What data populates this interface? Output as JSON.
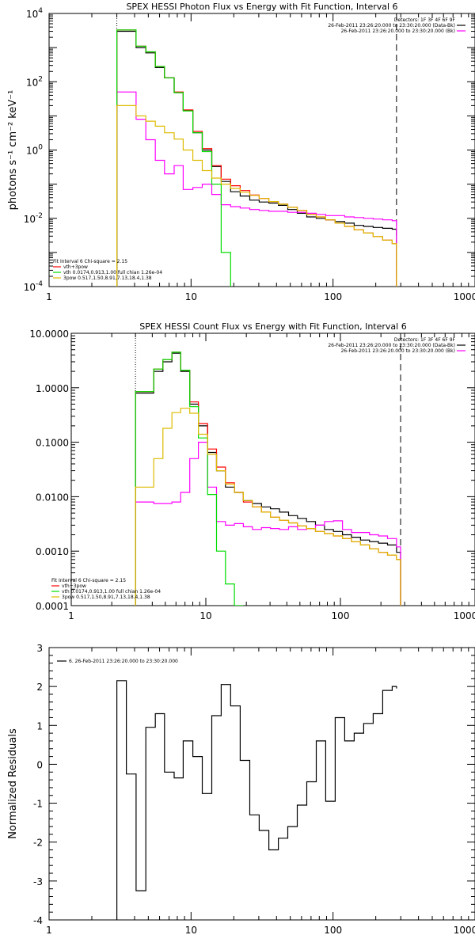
{
  "chart_data": [
    {
      "type": "line",
      "title": "SPEX HESSI Photon Flux vs Energy with Fit Function, Interval 6",
      "xlabel": "",
      "ylabel": "photons s⁻¹ cm⁻² keV⁻¹",
      "xscale": "log",
      "yscale": "log",
      "xlim": [
        1,
        1000
      ],
      "ylim": [
        0.0001,
        10000
      ],
      "xticks": [
        "1",
        "10",
        "100",
        "1000"
      ],
      "yticks_exp": [
        "-4",
        "-2",
        "0",
        "2",
        "4"
      ],
      "vline_dotted": 3,
      "vline_dashed": 280,
      "legend_top_right": [
        "Detectors: 1F 3F 4F 6F 9F",
        "26-Feb-2011 23:26:20.000 to 23:30:20.000 (Data-Bk)",
        "26-Feb-2011 23:26:20.000 to 23:30:20.000 (Bk)"
      ],
      "legend_bottom_left": [
        "Fit Interval 6   Chi-square = 2.15",
        "vth+3pow",
        "vth 0.0174,0.913,1.00  full chian 1.26e-04",
        "3pow 0.517,1.50,8.91,7.13,18.4,1.38"
      ],
      "series": [
        {
          "name": "Data-Bk",
          "color": "#000000",
          "x": [
            3,
            3.5,
            4.1,
            4.8,
            5.6,
            6.5,
            7.6,
            8.8,
            10.3,
            12,
            14,
            16.3,
            19,
            22.2,
            25.9,
            30.2,
            35.3,
            41.2,
            48,
            56,
            65.3,
            76.2,
            88.8,
            103.6,
            120.9,
            141,
            164.5,
            191.9,
            223.8,
            261.1,
            280
          ],
          "y": [
            3000,
            3000,
            1000,
            700,
            260,
            130,
            48,
            14.5,
            3.2,
            1.0,
            0.33,
            0.12,
            0.06,
            0.045,
            0.034,
            0.03,
            0.028,
            0.024,
            0.018,
            0.014,
            0.011,
            0.01,
            0.009,
            0.008,
            0.0072,
            0.0062,
            0.0058,
            0.0054,
            0.0051,
            0.0048,
            0.0048
          ]
        },
        {
          "name": "Bk",
          "color": "#ff00ff",
          "x": [
            3,
            3.5,
            4.1,
            4.8,
            5.6,
            6.5,
            7.6,
            8.8,
            10.3,
            12,
            14,
            16.3,
            19,
            22.2,
            25.9,
            30.2,
            35.3,
            41.2,
            48,
            56,
            65.3,
            76.2,
            88.8,
            103.6,
            120.9,
            141,
            164.5,
            191.9,
            223.8,
            261.1,
            280
          ],
          "y": [
            50,
            50,
            8,
            2,
            0.5,
            0.2,
            0.35,
            0.07,
            0.08,
            0.1,
            0.05,
            0.025,
            0.022,
            0.02,
            0.018,
            0.017,
            0.016,
            0.016,
            0.015,
            0.015,
            0.014,
            0.013,
            0.012,
            0.012,
            0.011,
            0.0105,
            0.01,
            0.0095,
            0.009,
            0.0085,
            0.0085
          ]
        },
        {
          "name": "vth+3pow",
          "color": "#ff0000",
          "x": [
            3,
            3.5,
            4.1,
            4.8,
            5.6,
            6.5,
            7.6,
            8.8,
            10.3,
            12,
            14,
            16.3,
            19,
            22.2,
            25.9,
            30.2,
            35.3,
            41.2,
            48,
            56,
            65.3,
            76.2,
            88.8,
            103.6,
            120.9,
            141,
            164.5,
            191.9,
            223.8,
            261.1,
            280
          ],
          "y": [
            3300,
            3300,
            1100,
            750,
            280,
            130,
            50,
            15,
            3.5,
            1.1,
            0.35,
            0.14,
            0.09,
            0.065,
            0.048,
            0.038,
            0.031,
            0.026,
            0.021,
            0.017,
            0.013,
            0.011,
            0.009,
            0.0072,
            0.0058,
            0.0046,
            0.0037,
            0.0029,
            0.0023,
            0.0018,
            0.0018
          ]
        },
        {
          "name": "vth",
          "color": "#00dd00",
          "x": [
            3,
            3.5,
            4.1,
            4.8,
            5.6,
            6.5,
            7.6,
            8.8,
            10.3,
            12,
            14,
            16.3,
            19
          ],
          "y": [
            3300,
            3300,
            1100,
            750,
            280,
            130,
            48,
            14,
            3.2,
            0.9,
            0.1,
            0.001,
            0.0001
          ]
        },
        {
          "name": "3pow",
          "color": "#ddbb00",
          "x": [
            3,
            3.5,
            4.1,
            4.8,
            5.6,
            6.5,
            7.6,
            8.8,
            10.3,
            12,
            14,
            16.3,
            19,
            22.2,
            25.9,
            30.2,
            35.3,
            41.2,
            48,
            56,
            65.3,
            76.2,
            88.8,
            103.6,
            120.9,
            141,
            164.5,
            191.9,
            223.8,
            261.1,
            280
          ],
          "y": [
            20,
            20,
            10,
            7,
            5,
            3.2,
            2.1,
            1.0,
            0.5,
            0.25,
            0.15,
            0.1,
            0.075,
            0.058,
            0.047,
            0.038,
            0.031,
            0.026,
            0.021,
            0.017,
            0.013,
            0.011,
            0.009,
            0.0072,
            0.0058,
            0.0046,
            0.0037,
            0.0029,
            0.0023,
            0.0018,
            0.0018
          ]
        }
      ]
    },
    {
      "type": "line",
      "title": "SPEX HESSI Count Flux vs Energy with Fit Function, Interval 6",
      "xlabel": "",
      "ylabel": "",
      "xscale": "log",
      "yscale": "log",
      "xlim": [
        1,
        1000
      ],
      "ylim": [
        0.0001,
        10
      ],
      "xticks": [
        "1",
        "10",
        "100",
        "1000"
      ],
      "yticks": [
        "0.0001",
        "0.0010",
        "0.0100",
        "0.1000",
        "1.0000",
        "10.0000"
      ],
      "vline_dotted": 3,
      "vline_dashed": 280,
      "legend_top_right": [
        "Detectors: 1F 3F 4F 6F 9F",
        "26-Feb-2011 23:26:20.000 to 23:30:20.000 (Data-Bk)",
        "26-Feb-2011 23:26:20.000 to 23:30:20.000 (Bk)"
      ],
      "legend_bottom_left": [
        "Fit Interval 6   Chi-square = 2.15",
        "vth+3pow",
        "vth 0.0174,0.913,1.00  full chian 1.26e-04",
        "3pow 0.517,1.50,8.91,7.13,18.4,1.38"
      ],
      "series": [
        {
          "name": "Data-Bk",
          "color": "#000000",
          "x": [
            3,
            3.5,
            4.1,
            4.8,
            5.6,
            6.5,
            7.6,
            8.8,
            10.3,
            12,
            14,
            16.3,
            19,
            22.2,
            25.9,
            30.2,
            35.3,
            41.2,
            48,
            56,
            65.3,
            76.2,
            88.8,
            103.6,
            120.9,
            141,
            164.5,
            191.9,
            223.8,
            261.1,
            280
          ],
          "y": [
            0.8,
            0.8,
            2.0,
            3.0,
            4.3,
            2.0,
            0.5,
            0.2,
            0.065,
            0.03,
            0.015,
            0.012,
            0.0085,
            0.0075,
            0.0065,
            0.006,
            0.0052,
            0.0045,
            0.004,
            0.0035,
            0.003,
            0.0025,
            0.0023,
            0.002,
            0.0018,
            0.0016,
            0.0015,
            0.0014,
            0.0013,
            0.00095,
            0.00095
          ]
        },
        {
          "name": "Bk",
          "color": "#ff00ff",
          "x": [
            3,
            3.5,
            4.1,
            4.8,
            5.6,
            6.5,
            7.6,
            8.8,
            10.3,
            12,
            14,
            16.3,
            19,
            22.2,
            25.9,
            30.2,
            35.3,
            41.2,
            48,
            56,
            65.3,
            76.2,
            88.8,
            103.6,
            120.9,
            141,
            164.5,
            191.9,
            223.8,
            261.1,
            280
          ],
          "y": [
            0.008,
            0.008,
            0.0075,
            0.0075,
            0.008,
            0.012,
            0.05,
            0.1,
            0.015,
            0.0035,
            0.003,
            0.0032,
            0.0028,
            0.0025,
            0.0027,
            0.0026,
            0.0025,
            0.0028,
            0.0025,
            0.0026,
            0.003,
            0.0035,
            0.0036,
            0.0025,
            0.0022,
            0.0022,
            0.002,
            0.0019,
            0.0017,
            0.0012,
            0.0012
          ]
        },
        {
          "name": "vth+3pow",
          "color": "#ff0000",
          "x": [
            3,
            3.5,
            4.1,
            4.8,
            5.6,
            6.5,
            7.6,
            8.8,
            10.3,
            12,
            14,
            16.3,
            19,
            22.2,
            25.9,
            30.2,
            35.3,
            41.2,
            48,
            56,
            65.3,
            76.2,
            88.8,
            103.6,
            120.9,
            141,
            164.5,
            191.9,
            223.8,
            261.1,
            280
          ],
          "y": [
            0.85,
            0.85,
            2.2,
            3.3,
            4.5,
            2.1,
            0.55,
            0.22,
            0.075,
            0.035,
            0.018,
            0.012,
            0.008,
            0.0065,
            0.0052,
            0.0042,
            0.0037,
            0.0033,
            0.0029,
            0.0026,
            0.0023,
            0.0021,
            0.0019,
            0.0017,
            0.0015,
            0.0013,
            0.0011,
            0.00095,
            0.00085,
            0.0007,
            0.0007
          ]
        },
        {
          "name": "vth",
          "color": "#00dd00",
          "x": [
            3,
            3.5,
            4.1,
            4.8,
            5.6,
            6.5,
            7.6,
            8.8,
            10.3,
            12,
            14,
            16.3,
            19
          ],
          "y": [
            0.85,
            0.85,
            2.2,
            3.3,
            4.5,
            2.1,
            0.45,
            0.12,
            0.011,
            0.001,
            0.00025,
            0.0001,
            0.0001
          ]
        },
        {
          "name": "3pow",
          "color": "#ddbb00",
          "x": [
            3,
            3.5,
            4.1,
            4.8,
            5.6,
            6.5,
            7.6,
            8.8,
            10.3,
            12,
            14,
            16.3,
            19,
            22.2,
            25.9,
            30.2,
            35.3,
            41.2,
            48,
            56,
            65.3,
            76.2,
            88.8,
            103.6,
            120.9,
            141,
            164.5,
            191.9,
            223.8,
            261.1,
            280
          ],
          "y": [
            0.015,
            0.015,
            0.05,
            0.18,
            0.35,
            0.42,
            0.34,
            0.14,
            0.06,
            0.03,
            0.017,
            0.012,
            0.0085,
            0.0065,
            0.0052,
            0.0042,
            0.0037,
            0.0033,
            0.0029,
            0.0026,
            0.0023,
            0.0021,
            0.0019,
            0.0017,
            0.0015,
            0.0013,
            0.0011,
            0.00095,
            0.00085,
            0.0007,
            0.0007
          ]
        }
      ]
    },
    {
      "type": "line",
      "title": "",
      "xlabel": "",
      "ylabel": "Normalized Residuals",
      "xscale": "log",
      "yscale": "linear",
      "xlim": [
        1,
        1000
      ],
      "ylim": [
        -4,
        3
      ],
      "xticks": [
        "1",
        "10",
        "100",
        "1000"
      ],
      "yticks": [
        "-4",
        "-3",
        "-2",
        "-1",
        "0",
        "1",
        "2",
        "3"
      ],
      "legend": [
        "6. 26-Feb-2011 23:26:20.000 to 23:30:20.000"
      ],
      "series": [
        {
          "name": "6. 26-Feb-2011 23:26:20.000 to 23:30:20.000",
          "color": "#000000",
          "x": [
            3,
            3.5,
            4.1,
            4.8,
            5.6,
            6.5,
            7.6,
            8.8,
            10.3,
            12,
            14,
            16.3,
            19,
            22.2,
            25.9,
            30.2,
            35.3,
            41.2,
            48,
            56,
            65.3,
            76.2,
            88.8,
            103.6,
            120.9,
            141,
            164.5,
            191.9,
            223.8,
            261.1,
            280
          ],
          "y": [
            2.15,
            -0.25,
            -3.25,
            0.95,
            1.3,
            -0.2,
            -0.35,
            0.6,
            0.2,
            -0.75,
            1.25,
            2.05,
            1.5,
            0.1,
            -1.3,
            -1.7,
            -2.2,
            -1.9,
            -1.6,
            -1.05,
            -0.45,
            0.6,
            -0.95,
            1.2,
            0.6,
            0.8,
            1.05,
            1.3,
            1.9,
            2.0,
            1.95
          ]
        }
      ]
    }
  ]
}
